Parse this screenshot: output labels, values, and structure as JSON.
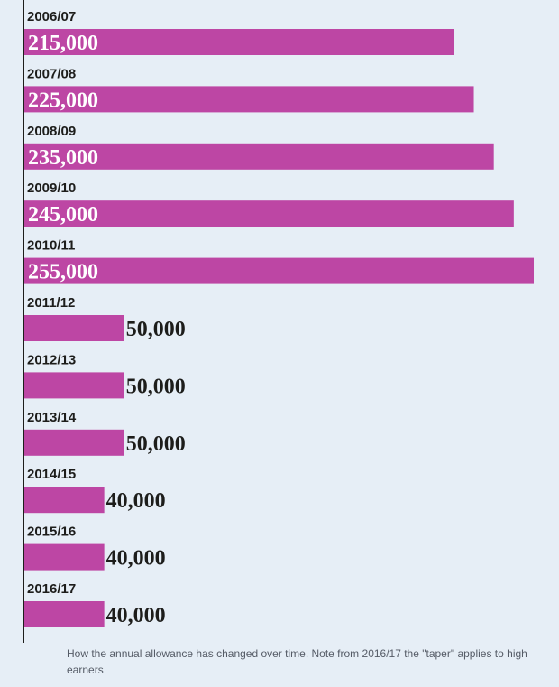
{
  "chart_data": {
    "type": "bar",
    "orientation": "horizontal",
    "categories": [
      "2006/07",
      "2007/08",
      "2008/09",
      "2009/10",
      "2010/11",
      "2011/12",
      "2012/13",
      "2013/14",
      "2014/15",
      "2015/16",
      "2016/17"
    ],
    "values": [
      215000,
      225000,
      235000,
      245000,
      255000,
      50000,
      50000,
      50000,
      40000,
      40000,
      40000
    ],
    "value_labels": [
      "215,000",
      "225,000",
      "235,000",
      "245,000",
      "255,000",
      "50,000",
      "50,000",
      "50,000",
      "40,000",
      "40,000",
      "40,000"
    ],
    "xlim": [
      0,
      260000
    ],
    "grid": false,
    "legend": "none"
  },
  "caption": "How the annual allowance has changed over time. Note from 2016/17 the \"taper\" applies to high earners",
  "colors": {
    "bar": "#bd46a4",
    "axis": "#1d1d1b",
    "background": "#e6eef6",
    "label_inside": "#ffffff",
    "label_outside": "#1d1d1b"
  }
}
